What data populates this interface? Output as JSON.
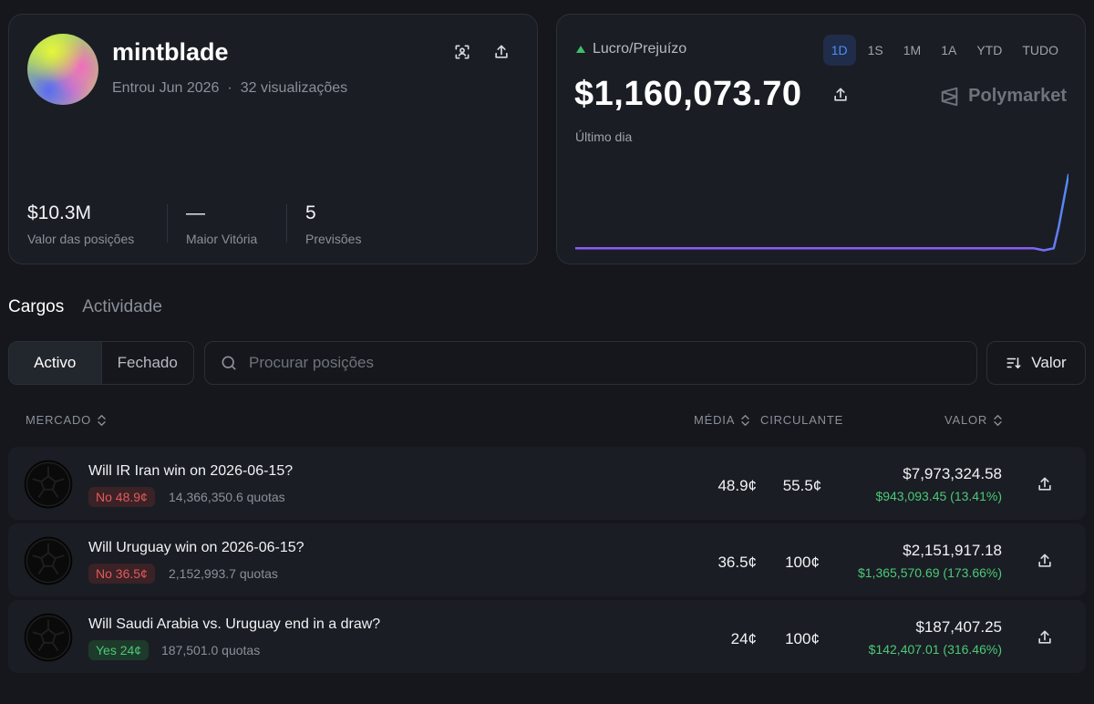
{
  "profile": {
    "username": "mintblade",
    "joined": "Entrou Jun 2026",
    "separator": "·",
    "views": "32 visualizações",
    "stats": [
      {
        "value": "$10.3M",
        "label": "Valor das posições"
      },
      {
        "value": "—",
        "label": "Maior Vitória"
      },
      {
        "value": "5",
        "label": "Previsões"
      }
    ],
    "icons": {
      "qr": "qr-scan-icon",
      "share": "share-icon"
    }
  },
  "pnl": {
    "label": "Lucro/Prejuízo",
    "value": "$1,160,073.70",
    "caption": "Último dia",
    "brand": "Polymarket",
    "ranges": [
      "1D",
      "1S",
      "1M",
      "1A",
      "YTD",
      "TUDO"
    ],
    "active_range": "1D",
    "colors": {
      "up": "#3fbf6a",
      "line_start": "#8b5cf6",
      "line_end": "#4f8df5",
      "active_tab": "#4f8df5"
    },
    "chart_data": {
      "type": "line",
      "x": [
        0,
        10,
        20,
        30,
        40,
        50,
        60,
        70,
        80,
        90,
        93,
        95,
        97,
        98,
        99,
        100
      ],
      "values": [
        0,
        0,
        0,
        0,
        0,
        0,
        0,
        0,
        0,
        0,
        0,
        -2,
        0,
        20,
        45,
        70
      ],
      "ylim": [
        -5,
        75
      ]
    }
  },
  "tabs": {
    "items": [
      "Cargos",
      "Actividade"
    ],
    "active": "Cargos"
  },
  "filter": {
    "segments": [
      "Activo",
      "Fechado"
    ],
    "active": "Activo"
  },
  "search": {
    "placeholder": "Procurar posições"
  },
  "sort": {
    "label": "Valor"
  },
  "table": {
    "headers": {
      "market": "MERCADO",
      "avg": "MÉDIA",
      "current": "CIRCULANTE",
      "value": "VALOR"
    },
    "rows": [
      {
        "title": "Will IR Iran win on 2026-06-15?",
        "outcome": "No 48.9¢",
        "side": "no",
        "shares": "14,366,350.6 quotas",
        "avg": "48.9¢",
        "current": "55.5¢",
        "value": "$7,973,324.58",
        "pnl": "$943,093.45 (13.41%)"
      },
      {
        "title": "Will Uruguay win on 2026-06-15?",
        "outcome": "No 36.5¢",
        "side": "no",
        "shares": "2,152,993.7 quotas",
        "avg": "36.5¢",
        "current": "100¢",
        "value": "$2,151,917.18",
        "pnl": "$1,365,570.69 (173.66%)"
      },
      {
        "title": "Will Saudi Arabia vs. Uruguay end in a draw?",
        "outcome": "Yes 24¢",
        "side": "yes",
        "shares": "187,501.0 quotas",
        "avg": "24¢",
        "current": "100¢",
        "value": "$187,407.25",
        "pnl": "$142,407.01 (316.46%)"
      }
    ]
  }
}
